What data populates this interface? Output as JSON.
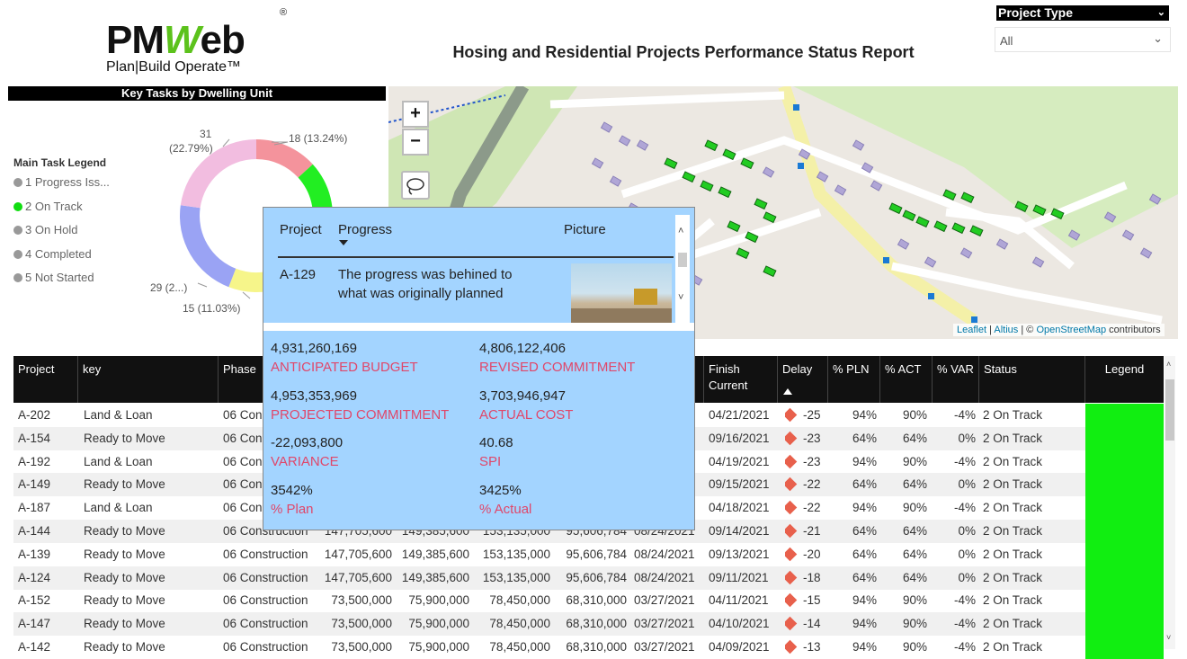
{
  "logo": {
    "brand_pm": "PM",
    "brand_w": "W",
    "brand_eb": "eb",
    "registered": "®",
    "tagline": "Plan|Build Operate™"
  },
  "report_title": "Hosing and Residential Projects Performance Status Report",
  "slicer": {
    "label": "Project Type",
    "value": "All"
  },
  "donut": {
    "title": "Key Tasks by Dwelling Unit",
    "legend_title": "Main Task Legend",
    "legend_items": [
      {
        "label": "1 Progress Iss...",
        "color": "#999999"
      },
      {
        "label": "2 On Track",
        "color": "#11dd11"
      },
      {
        "label": "3 On Hold",
        "color": "#999999"
      },
      {
        "label": "4 Completed",
        "color": "#999999"
      },
      {
        "label": "5 Not Started",
        "color": "#999999"
      }
    ],
    "labels": {
      "top_left_a": "31",
      "top_left_b": "(22.79%)",
      "top_right": "18 (13.24%)",
      "bottom_left": "29 (2...)",
      "bottom": "15 (11.03%)"
    }
  },
  "chart_data": {
    "type": "pie",
    "title": "Key Tasks by Dwelling Unit",
    "slices": [
      {
        "value": 18,
        "label": "18 (13.24%)",
        "color": "#f4939c"
      },
      {
        "value": 43,
        "label": "",
        "color": "#22ee22"
      },
      {
        "value": 15,
        "label": "15 (11.03%)",
        "color": "#f6f58a"
      },
      {
        "value": 29,
        "label": "29 (2...)",
        "color": "#9aa3f4"
      },
      {
        "value": 31,
        "label": "31 (22.79%)",
        "color": "#f2bde0"
      }
    ]
  },
  "map": {
    "zoom_in": "+",
    "zoom_out": "−",
    "attribution_leaflet": "Leaflet",
    "attribution_altius": "Altius",
    "attribution_mid": " | © ",
    "attribution_osm": "OpenStreetMap",
    "attribution_end": " contributors"
  },
  "table": {
    "headers": [
      "Project",
      "key",
      "Phase",
      "Finish Current",
      "Delay",
      "% PLN",
      "% ACT",
      "% VAR",
      "Status",
      "Legend"
    ],
    "rows": [
      {
        "project": "A-202",
        "key": "Land & Loan",
        "phase": "06 Const",
        "b1": "",
        "b2": "",
        "b3": "",
        "b4": "",
        "d1": "",
        "finish": "04/21/2021",
        "delay": "-25",
        "pln": "94%",
        "act": "90%",
        "var": "-4%",
        "status": "2 On Track",
        "alt": false
      },
      {
        "project": "A-154",
        "key": "Ready to Move",
        "phase": "06 Cons",
        "b1": "",
        "b2": "",
        "b3": "",
        "b4": "",
        "d1": "",
        "finish": "09/16/2021",
        "delay": "-23",
        "pln": "64%",
        "act": "64%",
        "var": "0%",
        "status": "2 On Track",
        "alt": true
      },
      {
        "project": "A-192",
        "key": "Land & Loan",
        "phase": "06 Cons",
        "b1": "",
        "b2": "",
        "b3": "",
        "b4": "",
        "d1": "",
        "finish": "04/19/2021",
        "delay": "-23",
        "pln": "94%",
        "act": "90%",
        "var": "-4%",
        "status": "2 On Track",
        "alt": false
      },
      {
        "project": "A-149",
        "key": "Ready to Move",
        "phase": "06 Cons",
        "b1": "",
        "b2": "",
        "b3": "",
        "b4": "",
        "d1": "",
        "finish": "09/15/2021",
        "delay": "-22",
        "pln": "64%",
        "act": "64%",
        "var": "0%",
        "status": "2 On Track",
        "alt": true
      },
      {
        "project": "A-187",
        "key": "Land & Loan",
        "phase": "06 Cons",
        "b1": "",
        "b2": "",
        "b3": "",
        "b4": "",
        "d1": "",
        "finish": "04/18/2021",
        "delay": "-22",
        "pln": "94%",
        "act": "90%",
        "var": "-4%",
        "status": "2 On Track",
        "alt": false
      },
      {
        "project": "A-144",
        "key": "Ready to Move",
        "phase": "06 Construction",
        "b1": "147,705,600",
        "b2": "149,385,600",
        "b3": "153,135,000",
        "b4": "95,606,784",
        "d1": "08/24/2021",
        "finish": "09/14/2021",
        "delay": "-21",
        "pln": "64%",
        "act": "64%",
        "var": "0%",
        "status": "2 On Track",
        "alt": true
      },
      {
        "project": "A-139",
        "key": "Ready to Move",
        "phase": "06 Construction",
        "b1": "147,705,600",
        "b2": "149,385,600",
        "b3": "153,135,000",
        "b4": "95,606,784",
        "d1": "08/24/2021",
        "finish": "09/13/2021",
        "delay": "-20",
        "pln": "64%",
        "act": "64%",
        "var": "0%",
        "status": "2 On Track",
        "alt": false
      },
      {
        "project": "A-124",
        "key": "Ready to Move",
        "phase": "06 Construction",
        "b1": "147,705,600",
        "b2": "149,385,600",
        "b3": "153,135,000",
        "b4": "95,606,784",
        "d1": "08/24/2021",
        "finish": "09/11/2021",
        "delay": "-18",
        "pln": "64%",
        "act": "64%",
        "var": "0%",
        "status": "2 On Track",
        "alt": true
      },
      {
        "project": "A-152",
        "key": "Ready to Move",
        "phase": "06 Construction",
        "b1": "73,500,000",
        "b2": "75,900,000",
        "b3": "78,450,000",
        "b4": "68,310,000",
        "d1": "03/27/2021",
        "finish": "04/11/2021",
        "delay": "-15",
        "pln": "94%",
        "act": "90%",
        "var": "-4%",
        "status": "2 On Track",
        "alt": false
      },
      {
        "project": "A-147",
        "key": "Ready to Move",
        "phase": "06 Construction",
        "b1": "73,500,000",
        "b2": "75,900,000",
        "b3": "78,450,000",
        "b4": "68,310,000",
        "d1": "03/27/2021",
        "finish": "04/10/2021",
        "delay": "-14",
        "pln": "94%",
        "act": "90%",
        "var": "-4%",
        "status": "2 On Track",
        "alt": true
      },
      {
        "project": "A-142",
        "key": "Ready to Move",
        "phase": "06 Construction",
        "b1": "73,500,000",
        "b2": "75,900,000",
        "b3": "78,450,000",
        "b4": "68,310,000",
        "d1": "03/27/2021",
        "finish": "04/09/2021",
        "delay": "-13",
        "pln": "94%",
        "act": "90%",
        "var": "-4%",
        "status": "2 On Track",
        "alt": false
      }
    ]
  },
  "tooltip": {
    "col_project": "Project",
    "col_progress": "Progress",
    "col_picture": "Picture",
    "project": "A-129",
    "progress_line1": "The progress was behined to",
    "progress_line2": "what was originally planned",
    "kpis": [
      {
        "value": "4,931,260,169",
        "label": "ANTICIPATED BUDGET"
      },
      {
        "value": "4,806,122,406",
        "label": "REVISED COMMITMENT"
      },
      {
        "value": "4,953,353,969",
        "label": "PROJECTED COMMITMENT"
      },
      {
        "value": "3,703,946,947",
        "label": "ACTUAL COST"
      },
      {
        "value": "-22,093,800",
        "label": "VARIANCE"
      },
      {
        "value": "40.68",
        "label": "SPI"
      },
      {
        "value": "3542%",
        "label": "% Plan"
      },
      {
        "value": "3425%",
        "label": "% Actual"
      }
    ]
  },
  "colors": {
    "legend_green": "#11ee11",
    "tooltip_bg": "#a3d4ff",
    "kpi_label": "#e0476a",
    "delay_marker": "#e8604c"
  }
}
